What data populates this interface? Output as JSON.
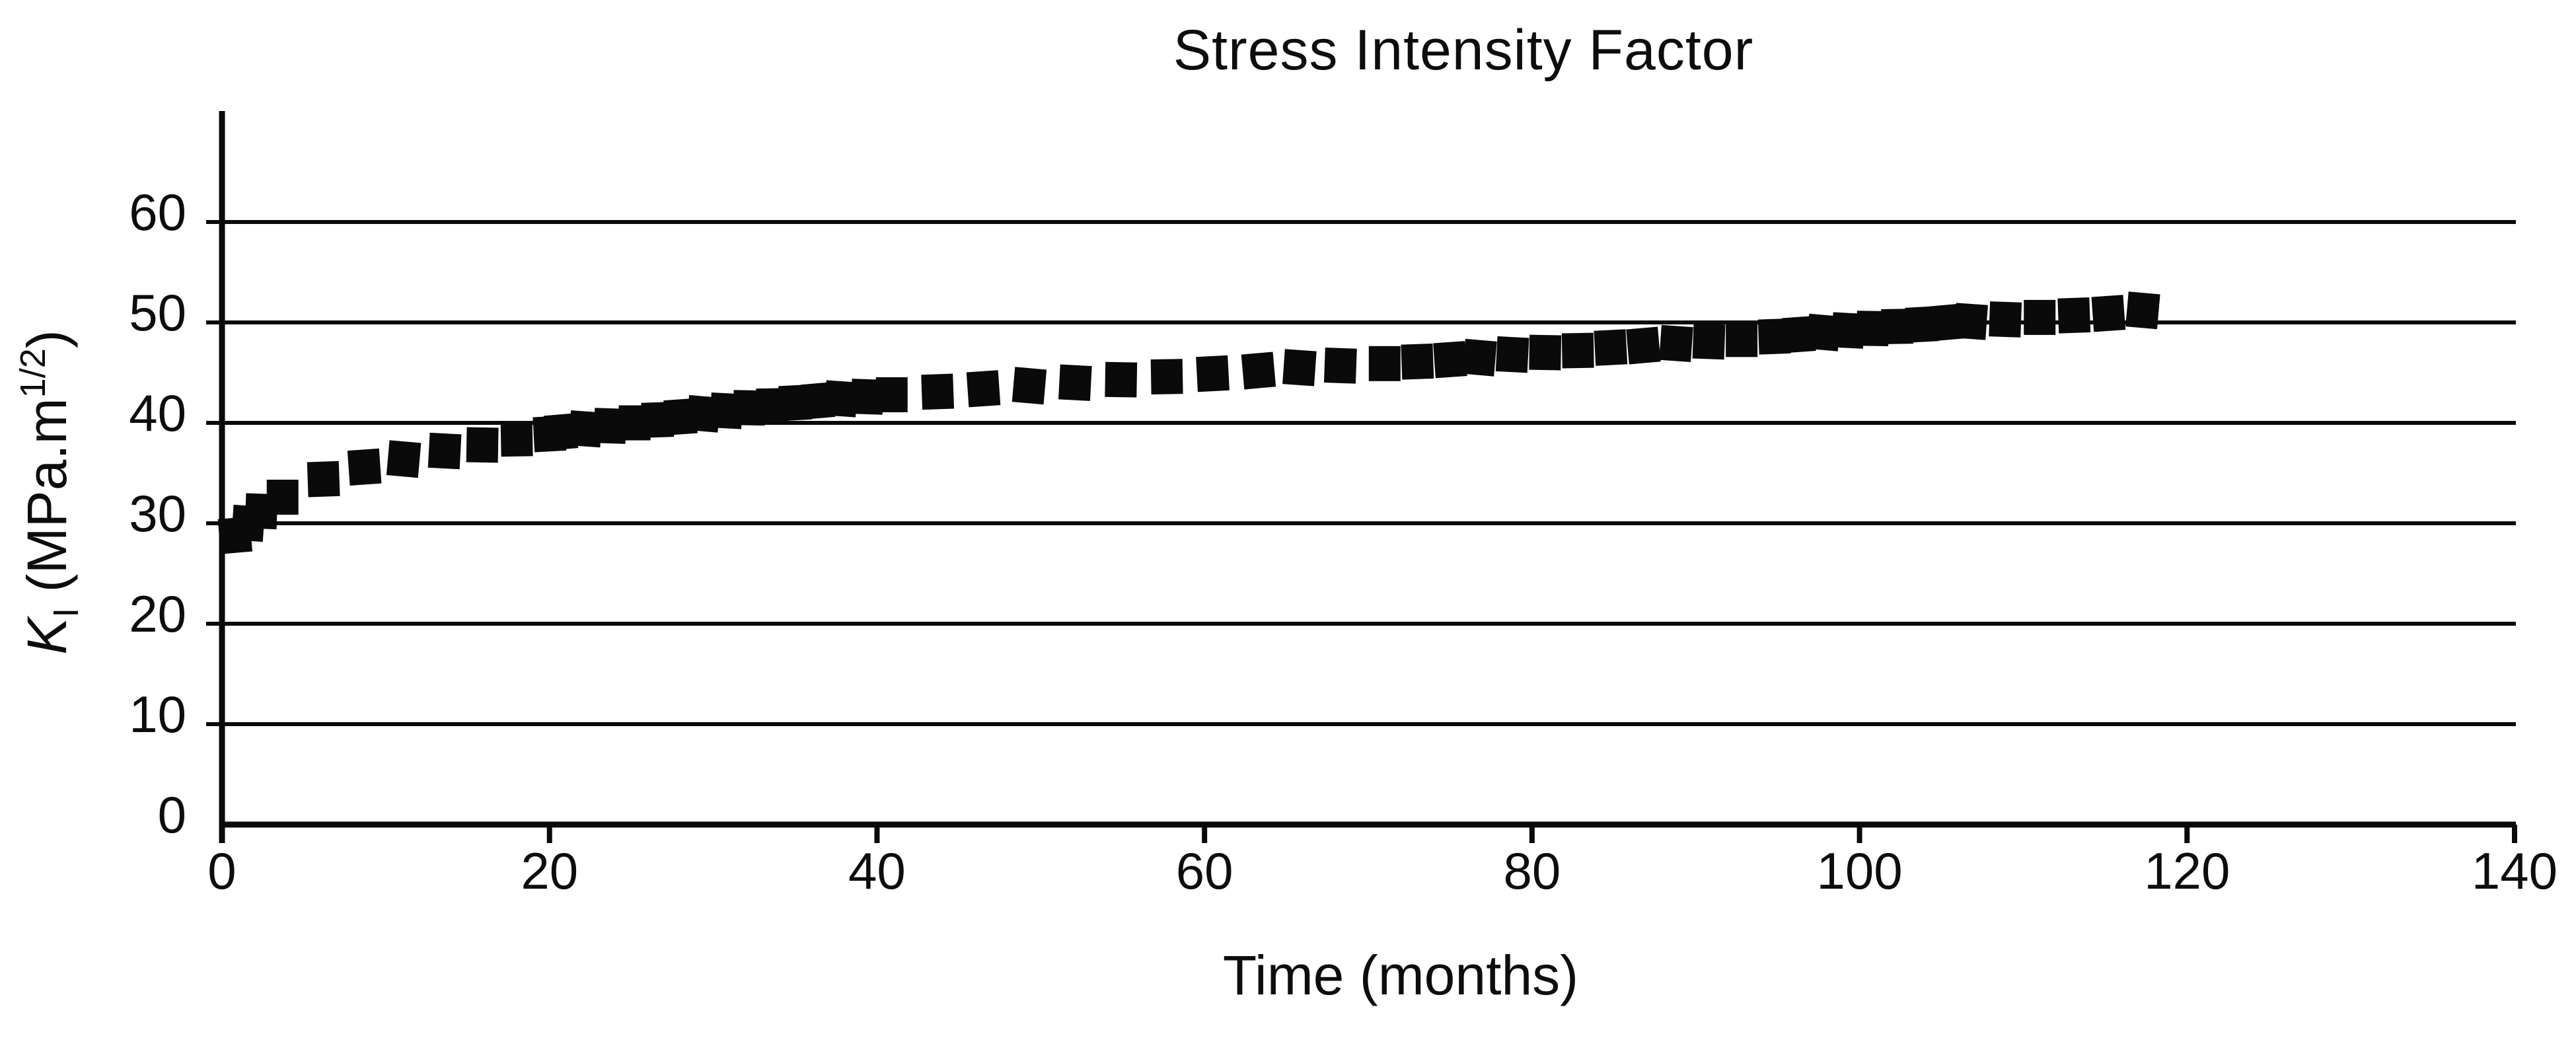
{
  "chart_data": {
    "type": "scatter",
    "title": "Stress Intensity Factor",
    "xlabel": "Time (months)",
    "ylabel": "KI (MPa.m1/2)",
    "ylabel_parts": {
      "symbol": "K",
      "subscript": "I",
      "unit_open": " (MPa.m",
      "exponent": "1/2",
      "unit_close": ")"
    },
    "x_ticks": [
      0,
      20,
      40,
      60,
      80,
      100,
      120,
      140
    ],
    "y_ticks": [
      0,
      10,
      20,
      30,
      40,
      50,
      60
    ],
    "xlim": [
      0,
      140
    ],
    "ylim": [
      0,
      71
    ],
    "grid": "horizontal-only",
    "legend": "none",
    "marker": {
      "shape": "square",
      "color": "#0a0a0a",
      "size": 48
    },
    "axis_color": "#0a0a0a",
    "background_color": "#ffffff",
    "series": [
      {
        "name": "KI",
        "points": [
          [
            0.8,
            28.8
          ],
          [
            1.6,
            30.0
          ],
          [
            2.4,
            31.2
          ],
          [
            3.7,
            32.6
          ],
          [
            6.2,
            34.4
          ],
          [
            8.7,
            35.6
          ],
          [
            11.1,
            36.4
          ],
          [
            13.6,
            37.2
          ],
          [
            15.9,
            37.8
          ],
          [
            18.0,
            38.4
          ],
          [
            20.0,
            38.9
          ],
          [
            20.7,
            39.1
          ],
          [
            22.2,
            39.4
          ],
          [
            23.7,
            39.7
          ],
          [
            25.2,
            40.0
          ],
          [
            26.6,
            40.3
          ],
          [
            28.0,
            40.6
          ],
          [
            29.4,
            40.9
          ],
          [
            30.8,
            41.2
          ],
          [
            32.2,
            41.5
          ],
          [
            33.6,
            41.7
          ],
          [
            35.0,
            42.0
          ],
          [
            36.4,
            42.2
          ],
          [
            37.8,
            42.4
          ],
          [
            39.4,
            42.6
          ],
          [
            40.9,
            42.8
          ],
          [
            43.7,
            43.1
          ],
          [
            46.5,
            43.4
          ],
          [
            49.3,
            43.7
          ],
          [
            52.1,
            44.0
          ],
          [
            54.9,
            44.3
          ],
          [
            57.7,
            44.6
          ],
          [
            60.5,
            44.9
          ],
          [
            63.3,
            45.2
          ],
          [
            65.8,
            45.5
          ],
          [
            68.3,
            45.7
          ],
          [
            71.0,
            45.9
          ],
          [
            73.0,
            46.1
          ],
          [
            75.0,
            46.3
          ],
          [
            76.8,
            46.5
          ],
          [
            78.8,
            46.8
          ],
          [
            80.8,
            47.0
          ],
          [
            82.8,
            47.2
          ],
          [
            84.8,
            47.5
          ],
          [
            86.8,
            47.7
          ],
          [
            88.8,
            47.9
          ],
          [
            90.8,
            48.1
          ],
          [
            92.8,
            48.3
          ],
          [
            94.8,
            48.6
          ],
          [
            96.3,
            48.8
          ],
          [
            97.8,
            49.0
          ],
          [
            99.3,
            49.2
          ],
          [
            100.8,
            49.4
          ],
          [
            102.3,
            49.6
          ],
          [
            103.8,
            49.8
          ],
          [
            105.3,
            50.0
          ],
          [
            106.8,
            50.1
          ],
          [
            108.9,
            50.3
          ],
          [
            111.0,
            50.5
          ],
          [
            113.1,
            50.7
          ],
          [
            115.2,
            50.9
          ],
          [
            117.3,
            51.2
          ]
        ]
      }
    ]
  }
}
